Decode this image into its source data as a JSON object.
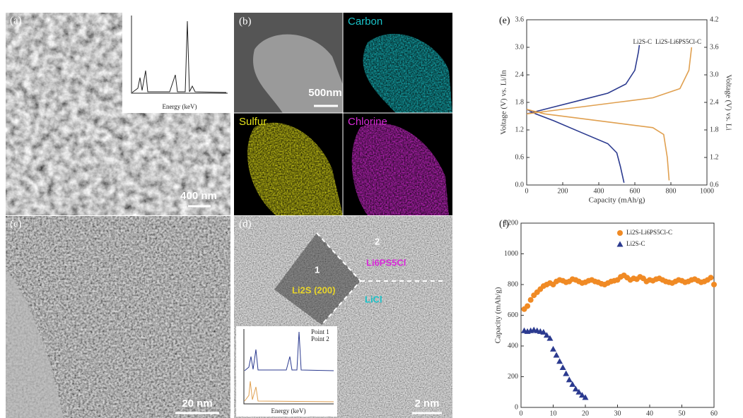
{
  "panels": {
    "a": {
      "label": "(a)",
      "scale_bar": "400 nm",
      "inset_xlabel": "Energy (keV)"
    },
    "b": {
      "label": "(b)",
      "scale_bar": "500nm",
      "maps": [
        "Carbon",
        "Sulfur",
        "Chlorine"
      ]
    },
    "c": {
      "label": "(c)",
      "scale_bar": "20 nm"
    },
    "d": {
      "label": "(d)",
      "scale_bar": "2 nm",
      "annotations": [
        "1",
        "2",
        "Li2S (200)",
        "Li6PS5Cl",
        "LiCl"
      ],
      "inset_xlabel": "Energy (keV)",
      "inset_legend": [
        "Point 1",
        "Point 2"
      ]
    }
  },
  "chart_data": [
    {
      "type": "line",
      "panel": "(e)",
      "xlabel": "Capacity (mAh/g)",
      "ylabel": "Voltage (V) vs. Li/In",
      "y2label": "Voltage (V) vs. Li",
      "xlim": [
        0,
        1000
      ],
      "xticks": [
        0,
        200,
        400,
        600,
        800,
        1000
      ],
      "ylim": [
        0,
        3.6
      ],
      "yticks": [
        {
          "value": 0,
          "label": "0.0"
        },
        0.6,
        1.2,
        1.8,
        2.4,
        {
          "value": 3,
          "label": "3.0"
        },
        3.6
      ],
      "y2lim": [
        0.6,
        4.2
      ],
      "y2ticks": [
        0.6,
        1.2,
        1.8,
        2.4,
        {
          "value": 3,
          "label": "3.0"
        },
        3.6,
        4.2
      ],
      "legend": "top-right",
      "series": [
        {
          "name": "Li2S-C",
          "color": "#2b3a8f",
          "x": [
            0,
            50,
            150,
            300,
            450,
            550,
            600,
            620,
            625,
            null,
            0,
            50,
            150,
            300,
            450,
            500,
            520,
            540
          ],
          "values": [
            1.55,
            1.6,
            1.7,
            1.85,
            2.0,
            2.2,
            2.5,
            2.9,
            3.05,
            null,
            1.65,
            1.55,
            1.4,
            1.15,
            0.9,
            0.7,
            0.4,
            0.05
          ]
        },
        {
          "name": "Li2S-Li6PS5Cl-C",
          "color": "#e0a050",
          "x": [
            0,
            100,
            300,
            500,
            700,
            850,
            900,
            915,
            null,
            0,
            100,
            300,
            500,
            700,
            760,
            780,
            790
          ],
          "values": [
            1.55,
            1.6,
            1.7,
            1.8,
            1.9,
            2.1,
            2.5,
            3.0,
            null,
            1.65,
            1.55,
            1.45,
            1.35,
            1.25,
            1.1,
            0.6,
            0.1
          ]
        }
      ]
    },
    {
      "type": "scatter",
      "panel": "(f)",
      "xlabel": "Cycle number",
      "ylabel": "Capacity (mAh/g)",
      "xlim": [
        0,
        60
      ],
      "xticks": [
        0,
        10,
        20,
        30,
        40,
        50,
        60
      ],
      "ylim": [
        0,
        1200
      ],
      "yticks": [
        0,
        200,
        400,
        600,
        800,
        1000,
        1200
      ],
      "legend": "top-right",
      "series": [
        {
          "name": "Li2S-Li6PS5Cl-C",
          "color": "#f08a24",
          "marker": "circle",
          "x": [
            1,
            2,
            3,
            4,
            5,
            6,
            7,
            8,
            9,
            10,
            11,
            12,
            13,
            14,
            15,
            16,
            17,
            18,
            19,
            20,
            21,
            22,
            23,
            24,
            25,
            26,
            27,
            28,
            29,
            30,
            31,
            32,
            33,
            34,
            35,
            36,
            37,
            38,
            39,
            40,
            41,
            42,
            43,
            44,
            45,
            46,
            47,
            48,
            49,
            50,
            51,
            52,
            53,
            54,
            55,
            56,
            57,
            58,
            59,
            60
          ],
          "values": [
            640,
            660,
            700,
            730,
            750,
            770,
            790,
            800,
            810,
            800,
            820,
            830,
            825,
            815,
            820,
            835,
            830,
            820,
            810,
            815,
            825,
            830,
            820,
            815,
            805,
            800,
            810,
            820,
            825,
            830,
            850,
            860,
            845,
            830,
            840,
            835,
            850,
            840,
            820,
            830,
            825,
            835,
            840,
            830,
            820,
            815,
            810,
            820,
            830,
            825,
            815,
            820,
            830,
            835,
            825,
            815,
            820,
            830,
            845,
            800
          ]
        },
        {
          "name": "Li2S-C",
          "color": "#2b3a8f",
          "marker": "triangle",
          "x": [
            1,
            2,
            3,
            4,
            5,
            6,
            7,
            8,
            9,
            10,
            11,
            12,
            13,
            14,
            15,
            16,
            17,
            18,
            19,
            20
          ],
          "values": [
            500,
            495,
            500,
            505,
            500,
            495,
            490,
            470,
            450,
            380,
            340,
            300,
            260,
            220,
            180,
            150,
            120,
            100,
            80,
            65
          ]
        }
      ]
    }
  ]
}
